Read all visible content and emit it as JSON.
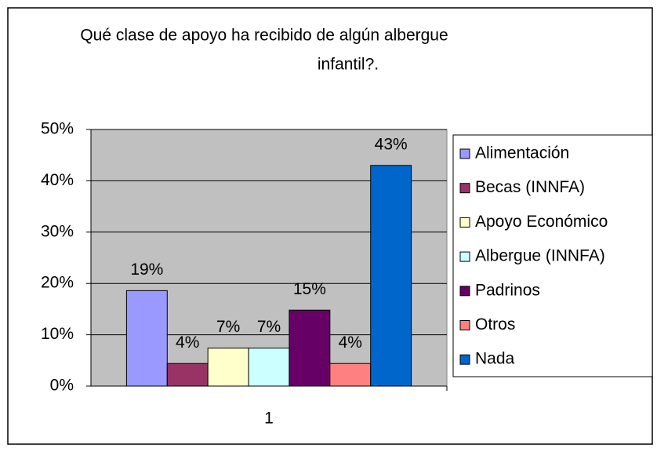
{
  "chart_data": {
    "type": "bar",
    "title": [
      "Qué clase de apoyo ha recibido de algún albergue",
      "infantil?."
    ],
    "categories": [
      "1"
    ],
    "series": [
      {
        "name": "Alimentación",
        "color": "#9999ff",
        "values": [
          18.6
        ],
        "value_labels": [
          "19%"
        ]
      },
      {
        "name": "Becas (INNFA)",
        "color": "#993366",
        "values": [
          4.4
        ],
        "value_labels": [
          "4%"
        ]
      },
      {
        "name": "Apoyo Económico",
        "color": "#ffffcc",
        "values": [
          7.4
        ],
        "value_labels": [
          "7%"
        ]
      },
      {
        "name": "Albergue (INNFA)",
        "color": "#ccffff",
        "values": [
          7.4
        ],
        "value_labels": [
          "7%"
        ]
      },
      {
        "name": "Padrinos",
        "color": "#660066",
        "values": [
          14.8
        ],
        "value_labels": [
          "15%"
        ]
      },
      {
        "name": "Otros",
        "color": "#ff8080",
        "values": [
          4.4
        ],
        "value_labels": [
          "4%"
        ]
      },
      {
        "name": "Nada",
        "color": "#0066cc",
        "values": [
          43.0
        ],
        "value_labels": [
          "43%"
        ]
      }
    ],
    "ylim": [
      0,
      50
    ],
    "yticks": [
      {
        "value": 0,
        "label": "0%"
      },
      {
        "value": 10,
        "label": "10%"
      },
      {
        "value": 20,
        "label": "20%"
      },
      {
        "value": 30,
        "label": "30%"
      },
      {
        "value": 40,
        "label": "40%"
      },
      {
        "value": 50,
        "label": "50%"
      }
    ],
    "grid": true,
    "legend": "right"
  }
}
